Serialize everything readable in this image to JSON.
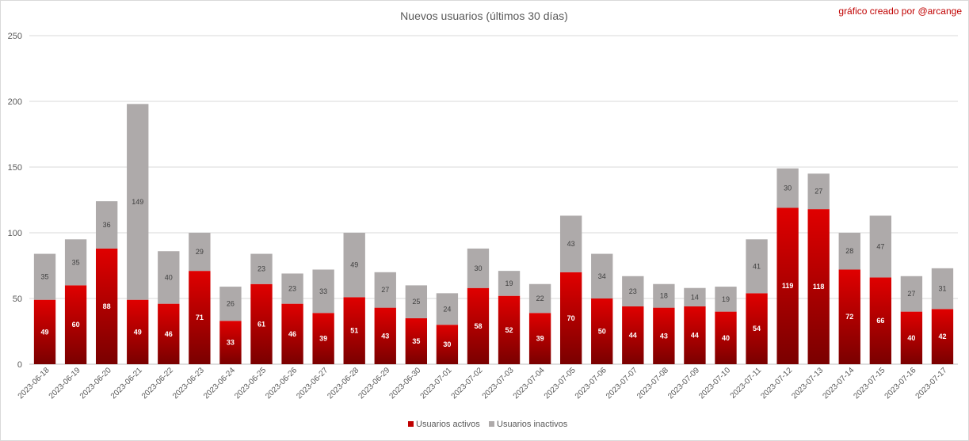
{
  "chart_data": {
    "type": "bar",
    "stacked": true,
    "title": "Nuevos usuarios (últimos 30 días)",
    "annotation": "gráfico creado por @arcange",
    "categories": [
      "2023-06-18",
      "2023-06-19",
      "2023-06-20",
      "2023-06-21",
      "2023-06-22",
      "2023-06-23",
      "2023-06-24",
      "2023-06-25",
      "2023-06-26",
      "2023-06-27",
      "2023-06-28",
      "2023-06-29",
      "2023-06-30",
      "2023-07-01",
      "2023-07-02",
      "2023-07-03",
      "2023-07-04",
      "2023-07-05",
      "2023-07-06",
      "2023-07-07",
      "2023-07-08",
      "2023-07-09",
      "2023-07-10",
      "2023-07-11",
      "2023-07-12",
      "2023-07-13",
      "2023-07-14",
      "2023-07-15",
      "2023-07-16",
      "2023-07-17"
    ],
    "series": [
      {
        "name": "Usuarios activos",
        "color": "#c00000",
        "values": [
          49,
          60,
          88,
          49,
          46,
          71,
          33,
          61,
          46,
          39,
          51,
          43,
          35,
          30,
          58,
          52,
          39,
          70,
          50,
          44,
          43,
          44,
          40,
          54,
          119,
          118,
          72,
          66,
          40,
          42
        ]
      },
      {
        "name": "Usuarios inactivos",
        "color": "#aeaaaa",
        "values": [
          35,
          35,
          36,
          149,
          40,
          29,
          26,
          23,
          23,
          33,
          49,
          27,
          25,
          24,
          30,
          19,
          22,
          43,
          34,
          23,
          18,
          14,
          19,
          41,
          30,
          27,
          28,
          47,
          27,
          31
        ]
      }
    ],
    "yticks": [
      0,
      50,
      100,
      150,
      200,
      250
    ],
    "ylim": [
      0,
      250
    ],
    "grid": true,
    "legend_position": "bottom"
  }
}
